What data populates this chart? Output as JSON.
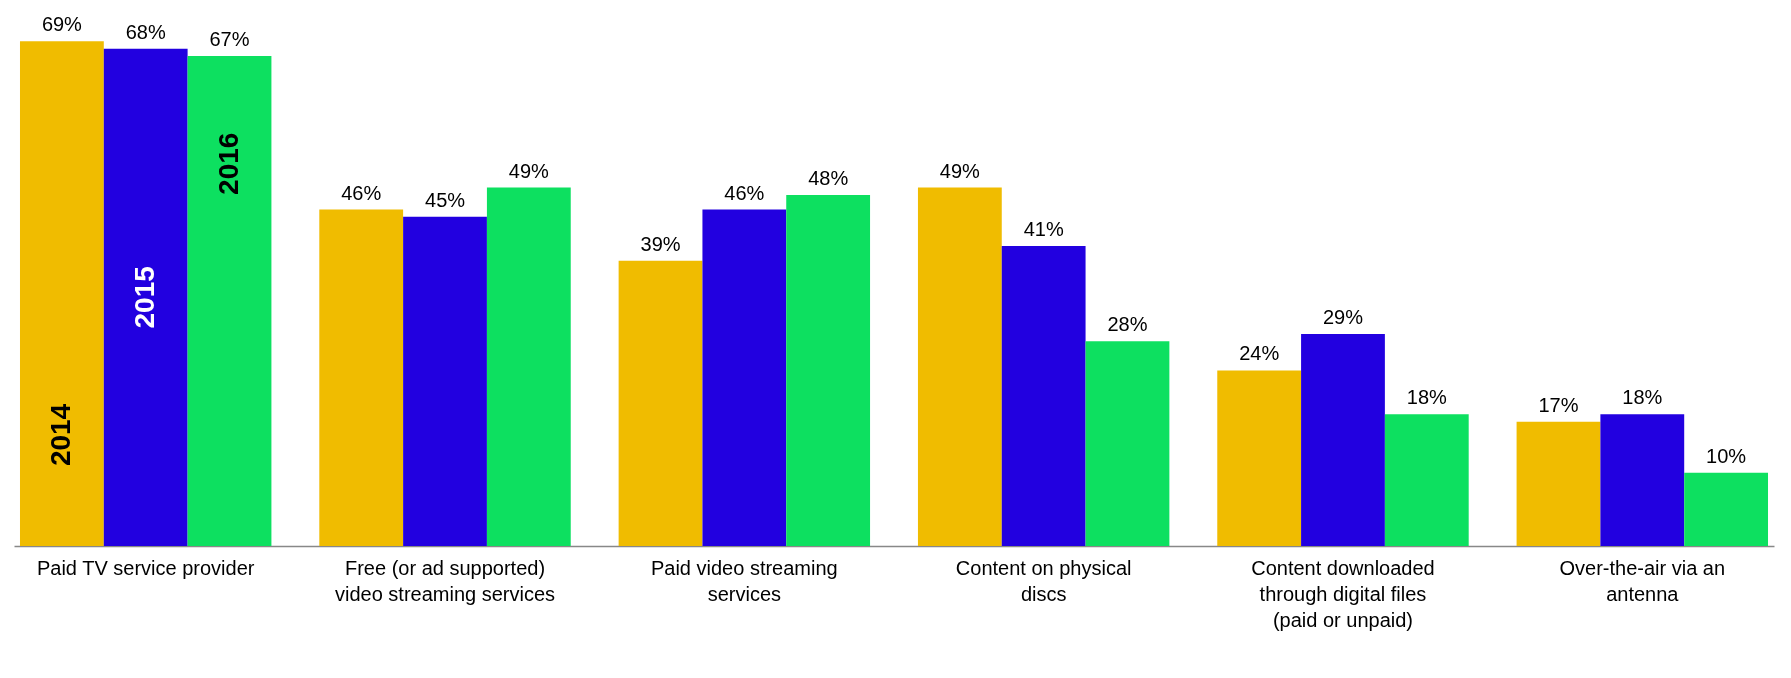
{
  "chart_data": {
    "type": "bar",
    "categories": [
      "Paid TV service provider",
      "Free (or ad supported) video streaming services",
      "Paid video streaming services",
      "Content on physical discs",
      "Content downloaded through digital files (paid or unpaid)",
      "Over-the-air via an antenna"
    ],
    "series": [
      {
        "name": "2014",
        "color": "#f0bc00",
        "values": [
          69,
          46,
          39,
          49,
          24,
          17
        ],
        "value_labels": [
          "69%",
          "46%",
          "39%",
          "49%",
          "24%",
          "17%"
        ]
      },
      {
        "name": "2015",
        "color": "#2200e0",
        "values": [
          68,
          45,
          46,
          41,
          29,
          18
        ],
        "value_labels": [
          "68%",
          "45%",
          "46%",
          "41%",
          "29%",
          "18%"
        ]
      },
      {
        "name": "2016",
        "color": "#0de060",
        "values": [
          67,
          49,
          48,
          28,
          18,
          10
        ],
        "value_labels": [
          "67%",
          "49%",
          "48%",
          "28%",
          "18%",
          "10%"
        ]
      }
    ],
    "legend": false,
    "grid": false
  }
}
